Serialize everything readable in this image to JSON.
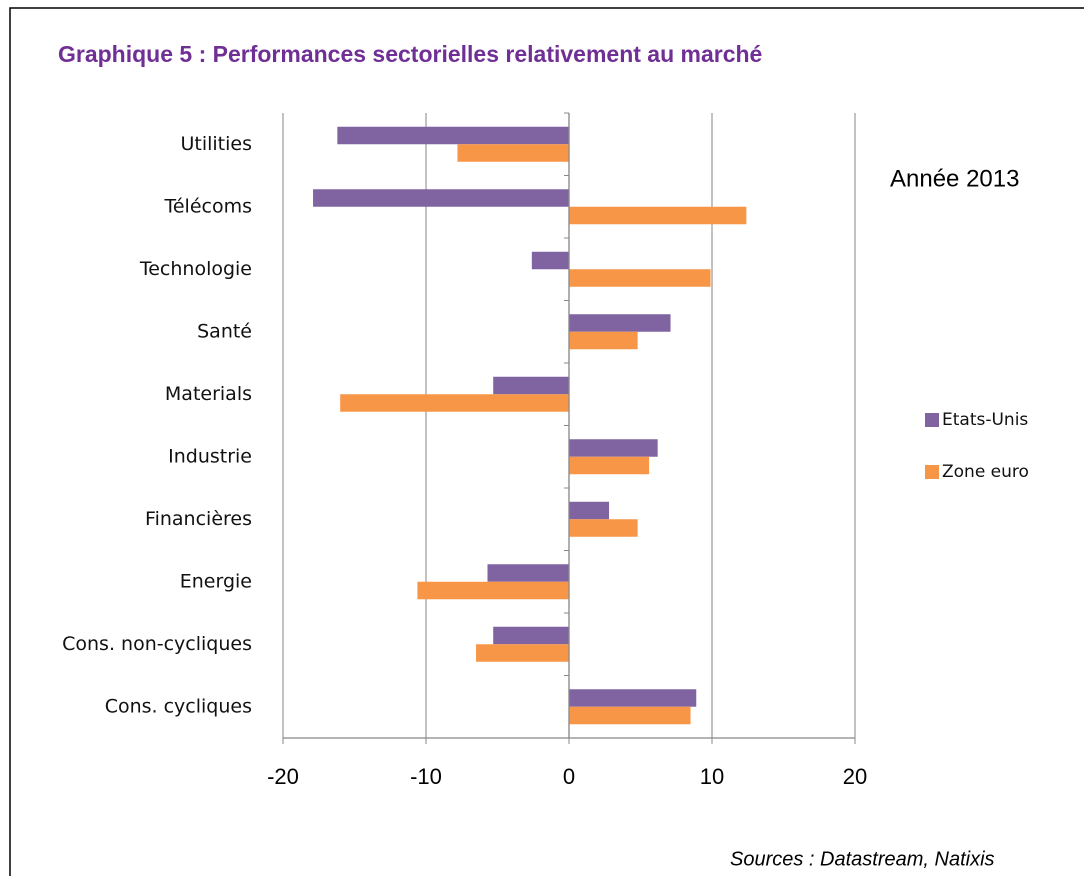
{
  "chart_data": {
    "type": "barh",
    "title": "Graphique 5 : Performances sectorielles relativement au marché",
    "annotation": "Année 2013",
    "source": "Sources : Datastream, Natixis",
    "categories": [
      "Utilities",
      "Télécoms",
      "Technologie",
      "Santé",
      "Materials",
      "Industrie",
      "Financières",
      "Energie",
      "Cons. non-cycliques",
      "Cons. cycliques"
    ],
    "series": [
      {
        "name": "Etats-Unis",
        "color": "#8064a2",
        "values": [
          -16.2,
          -17.9,
          -2.6,
          7.1,
          -5.3,
          6.2,
          2.8,
          -5.7,
          -5.3,
          8.9
        ]
      },
      {
        "name": "Zone euro",
        "color": "#f79646",
        "values": [
          -7.8,
          12.4,
          9.9,
          4.8,
          -16.0,
          5.6,
          4.8,
          -10.6,
          -6.5,
          8.5
        ]
      }
    ],
    "xlim": [
      -20,
      20
    ],
    "xticks": [
      -20,
      -10,
      0,
      10,
      20
    ],
    "grid": true,
    "legend": "right"
  }
}
